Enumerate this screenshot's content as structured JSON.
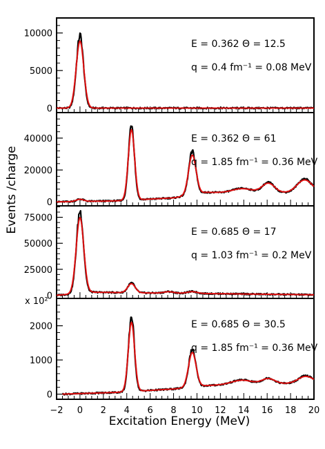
{
  "chart_data": {
    "type": "line",
    "xlabel": "Excitation Energy (MeV)",
    "ylabel": "Events /charge",
    "xlim": [
      -2,
      20
    ],
    "xticks": [
      -2,
      0,
      2,
      4,
      6,
      8,
      10,
      12,
      14,
      16,
      18,
      20
    ],
    "colors": {
      "data": "#000000",
      "fit": "#e01010"
    },
    "panels": [
      {
        "ylim": [
          -600,
          12000
        ],
        "yticks": [
          0,
          5000,
          10000
        ],
        "annotation_line1": "E = 0.362   Θ = 12.5",
        "annotation_line2": "q = 0.4 fm⁻¹ = 0.08 MeV",
        "peaks": [
          {
            "x": 0.0,
            "height": 9700,
            "width": 0.3
          }
        ],
        "baseline": [
          [
            -2,
            0
          ],
          [
            20,
            0
          ]
        ]
      },
      {
        "ylim": [
          -2500,
          56000
        ],
        "yticks": [
          0,
          20000,
          40000
        ],
        "annotation_line1": "E = 0.362   Θ = 61",
        "annotation_line2": "q = 1.85 fm⁻¹ = 0.36 MeV",
        "peaks": [
          {
            "x": 0.0,
            "height": 1500,
            "width": 0.3
          },
          {
            "x": 4.4,
            "height": 48000,
            "width": 0.25
          },
          {
            "x": 9.6,
            "height": 27000,
            "width": 0.3
          },
          {
            "x": 13.9,
            "height": 3000,
            "width": 0.8
          },
          {
            "x": 16.1,
            "height": 6500,
            "width": 0.5
          },
          {
            "x": 19.2,
            "height": 8500,
            "width": 0.6
          }
        ],
        "baseline": [
          [
            -2,
            0
          ],
          [
            3,
            600
          ],
          [
            8,
            2500
          ],
          [
            10.8,
            6000
          ],
          [
            14,
            5500
          ],
          [
            20,
            6000
          ]
        ]
      },
      {
        "ylim": [
          -3000,
          86000
        ],
        "yticks": [
          0,
          25000,
          50000,
          75000
        ],
        "annotation_line1": "E = 0.685   Θ = 17",
        "annotation_line2": "q = 1.03 fm⁻¹ = 0.2 MeV",
        "peaks": [
          {
            "x": 0.0,
            "height": 79000,
            "width": 0.3
          },
          {
            "x": 4.4,
            "height": 9500,
            "width": 0.3
          },
          {
            "x": 7.6,
            "height": 1500,
            "width": 0.4
          },
          {
            "x": 9.6,
            "height": 1800,
            "width": 0.4
          }
        ],
        "baseline": [
          [
            -2,
            0
          ],
          [
            1,
            3000
          ],
          [
            4,
            2500
          ],
          [
            20,
            500
          ]
        ]
      },
      {
        "ylim": [
          -150,
          2800
        ],
        "yticks": [
          0,
          1000,
          2000
        ],
        "yaxis_multiplier": "x 10²",
        "annotation_line1": "E = 0.685   Θ = 30.5",
        "annotation_line2": "q = 1.85 fm⁻¹ = 0.36 MeV",
        "peaks": [
          {
            "x": 4.4,
            "height": 2200,
            "width": 0.25
          },
          {
            "x": 9.6,
            "height": 1100,
            "width": 0.3
          },
          {
            "x": 13.8,
            "height": 120,
            "width": 0.8
          },
          {
            "x": 16.1,
            "height": 160,
            "width": 0.5
          },
          {
            "x": 19.3,
            "height": 220,
            "width": 0.6
          }
        ],
        "baseline": [
          [
            -1.5,
            0
          ],
          [
            3,
            50
          ],
          [
            8,
            150
          ],
          [
            10.8,
            250
          ],
          [
            14,
            300
          ],
          [
            20,
            320
          ]
        ]
      }
    ]
  }
}
